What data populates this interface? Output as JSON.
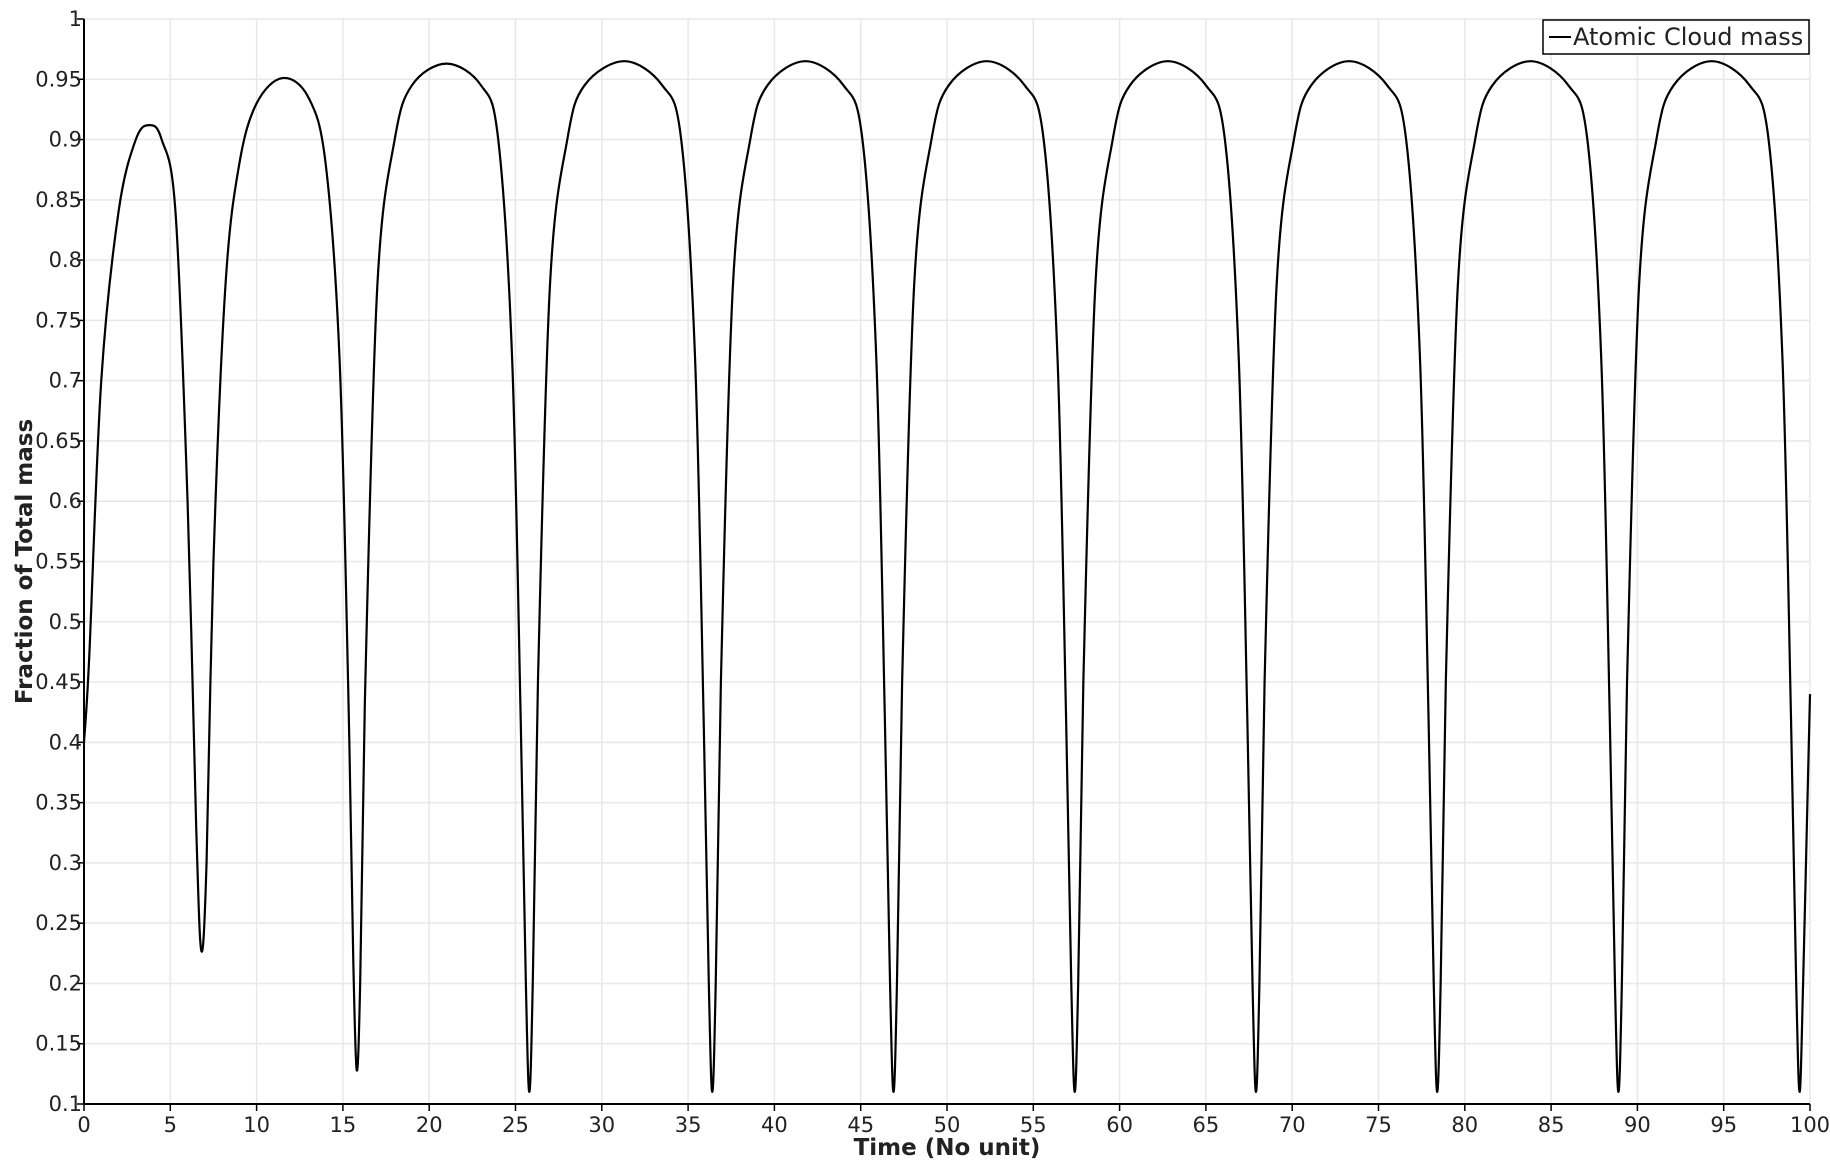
{
  "chart_data": {
    "type": "line",
    "title": "",
    "xlabel": "Time (No unit)",
    "ylabel": "Fraction of Total mass",
    "xlim": [
      0,
      100
    ],
    "ylim": [
      0.1,
      1
    ],
    "x_ticks": [
      "0",
      "5",
      "10",
      "15",
      "20",
      "25",
      "30",
      "35",
      "40",
      "45",
      "50",
      "55",
      "60",
      "65",
      "70",
      "75",
      "80",
      "85",
      "90",
      "95",
      "100"
    ],
    "y_ticks": [
      "0.1",
      "0.15",
      "0.2",
      "0.25",
      "0.3",
      "0.35",
      "0.4",
      "0.45",
      "0.5",
      "0.55",
      "0.6",
      "0.65",
      "0.7",
      "0.75",
      "0.8",
      "0.85",
      "0.9",
      "0.95",
      "1"
    ],
    "grid": true,
    "legend": {
      "position": "top-right",
      "entries": [
        "Atomic Cloud mass"
      ]
    },
    "series": [
      {
        "name": "Atomic Cloud mass",
        "color": "#000000",
        "x": [
          0,
          0.3,
          1,
          2,
          3,
          3.8,
          4.5,
          5.3,
          6.0,
          6.5,
          6.8,
          7.1,
          7.5,
          8.2,
          9,
          10,
          11.5,
          13,
          14,
          14.8,
          15.3,
          15.6,
          15.8,
          16.0,
          16.3,
          17,
          18,
          19,
          21,
          23,
          24,
          24.8,
          25.3,
          25.6,
          25.8,
          26.0,
          26.3,
          27,
          28,
          29,
          31.3,
          33.5,
          34.6,
          35.4,
          35.9,
          36.2,
          36.4,
          36.6,
          36.9,
          37.6,
          38.6,
          39.6,
          41.8,
          44.0,
          45.1,
          45.9,
          46.4,
          46.7,
          46.9,
          47.1,
          47.4,
          48.1,
          49.1,
          50.1,
          52.3,
          54.5,
          55.6,
          56.4,
          56.9,
          57.2,
          57.4,
          57.6,
          57.9,
          58.6,
          59.6,
          60.6,
          62.8,
          65.0,
          66.1,
          66.9,
          67.4,
          67.7,
          67.9,
          68.1,
          68.4,
          69.1,
          70.1,
          71.1,
          73.3,
          75.5,
          76.6,
          77.4,
          77.9,
          78.2,
          78.4,
          78.6,
          78.9,
          79.6,
          80.6,
          81.6,
          83.8,
          86.0,
          87.1,
          87.9,
          88.4,
          88.7,
          88.9,
          89.1,
          89.4,
          90.1,
          91.1,
          92.1,
          94.3,
          96.5,
          97.6,
          98.4,
          98.9,
          99.2,
          99.4,
          99.6,
          99.8,
          100
        ],
        "y": [
          0.4,
          0.47,
          0.7,
          0.84,
          0.9,
          0.912,
          0.9,
          0.84,
          0.6,
          0.33,
          0.227,
          0.3,
          0.55,
          0.78,
          0.88,
          0.93,
          0.951,
          0.935,
          0.88,
          0.72,
          0.45,
          0.22,
          0.128,
          0.2,
          0.45,
          0.78,
          0.9,
          0.945,
          0.963,
          0.945,
          0.9,
          0.72,
          0.42,
          0.2,
          0.11,
          0.2,
          0.45,
          0.78,
          0.9,
          0.945,
          0.965,
          0.945,
          0.9,
          0.72,
          0.42,
          0.2,
          0.11,
          0.2,
          0.45,
          0.78,
          0.9,
          0.945,
          0.965,
          0.945,
          0.9,
          0.72,
          0.42,
          0.2,
          0.11,
          0.2,
          0.45,
          0.78,
          0.9,
          0.945,
          0.965,
          0.945,
          0.9,
          0.72,
          0.42,
          0.2,
          0.11,
          0.2,
          0.45,
          0.78,
          0.9,
          0.945,
          0.965,
          0.945,
          0.9,
          0.72,
          0.42,
          0.2,
          0.11,
          0.2,
          0.45,
          0.78,
          0.9,
          0.945,
          0.965,
          0.945,
          0.9,
          0.72,
          0.42,
          0.2,
          0.11,
          0.2,
          0.45,
          0.78,
          0.9,
          0.945,
          0.965,
          0.945,
          0.9,
          0.72,
          0.42,
          0.2,
          0.11,
          0.2,
          0.45,
          0.78,
          0.9,
          0.945,
          0.965,
          0.945,
          0.9,
          0.72,
          0.42,
          0.2,
          0.11,
          0.2,
          0.32,
          0.44
        ]
      }
    ]
  }
}
